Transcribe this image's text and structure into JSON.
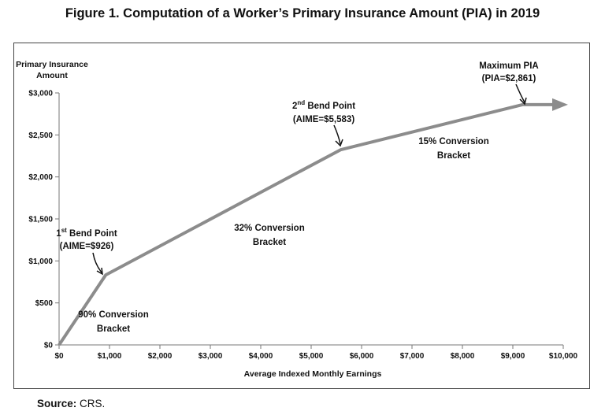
{
  "figure": {
    "title": "Figure 1. Computation of a Worker’s Primary Insurance Amount (PIA) in 2019",
    "source_label": "Source:",
    "source_value": "CRS."
  },
  "chart_data": {
    "type": "line",
    "title": "",
    "xlabel": "Average Indexed Monthly Earnings",
    "ylabel_lines": [
      "Primary Insurance",
      "Amount"
    ],
    "xlim": [
      0,
      10000
    ],
    "ylim": [
      0,
      3000
    ],
    "x_ticks": [
      0,
      1000,
      2000,
      3000,
      4000,
      5000,
      6000,
      7000,
      8000,
      9000,
      10000
    ],
    "x_tick_labels": [
      "$0",
      "$1,000",
      "$2,000",
      "$3,000",
      "$4,000",
      "$5,000",
      "$6,000",
      "$7,000",
      "$8,000",
      "$9,000",
      "$10,000"
    ],
    "y_ticks": [
      0,
      500,
      1000,
      1500,
      2000,
      2500,
      3000
    ],
    "y_tick_labels": [
      "$0",
      "$500",
      "$1,000",
      "$1,500",
      "$2,000",
      "$2,500",
      "$3,000"
    ],
    "series": [
      {
        "x": [
          0,
          926,
          5583,
          9200,
          10000
        ],
        "y": [
          0,
          833,
          2323,
          2861,
          2861
        ]
      }
    ],
    "line_color": "#8c8c8c",
    "grid": false,
    "annotations": {
      "bend1_main": "1",
      "bend1_sup": "st",
      "bend1_rest": " Bend Point",
      "bend1_line2": "(AIME=$926)",
      "bend2_main": "2",
      "bend2_sup": "nd",
      "bend2_rest": " Bend Point",
      "bend2_line2": "(AIME=$5,583)",
      "max_line1": "Maximum PIA",
      "max_line2": "(PIA=$2,861)",
      "bracket90_line1": "90% Conversion",
      "bracket90_line2": "Bracket",
      "bracket32_line1": "32% Conversion",
      "bracket32_line2": "Bracket",
      "bracket15_line1": "15% Conversion",
      "bracket15_line2": "Bracket"
    }
  }
}
